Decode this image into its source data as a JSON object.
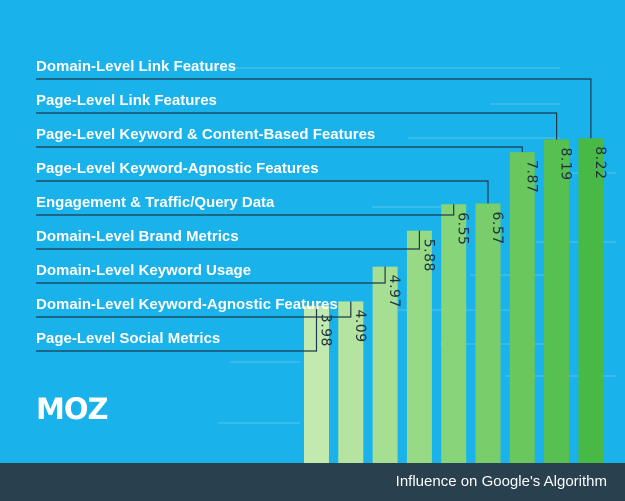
{
  "colors": {
    "background": "#1ab2ea",
    "footer_bg": "#29414f",
    "connector": "#1e3a4c",
    "bars": [
      "#c2e9ae",
      "#b5e4a1",
      "#a6df93",
      "#97d985",
      "#88d478",
      "#79ce6b",
      "#69c75e",
      "#58c051",
      "#48b944"
    ]
  },
  "logo": "MOZ",
  "footer_caption": "Influence on Google's Algorithm",
  "chart_data": {
    "type": "bar",
    "title": "",
    "xlabel": "Influence on Google's Algorithm",
    "categories": [
      "Page-Level Social Metrics",
      "Domain-Level Keyword-Agnostic Features",
      "Domain-Level Keyword Usage",
      "Domain-Level Brand Metrics",
      "Engagement & Traffic/Query Data",
      "Page-Level Keyword-Agnostic Features",
      "Page-Level Keyword & Content-Based Features",
      "Page-Level Link Features",
      "Domain-Level Link Features"
    ],
    "values": [
      3.98,
      4.09,
      4.97,
      5.88,
      6.55,
      6.57,
      7.87,
      8.19,
      8.22
    ],
    "value_labels": [
      "3.98",
      "4.09",
      "4.97",
      "5.88",
      "6.55",
      "6.57",
      "7.87",
      "8.19",
      "8.22"
    ]
  }
}
